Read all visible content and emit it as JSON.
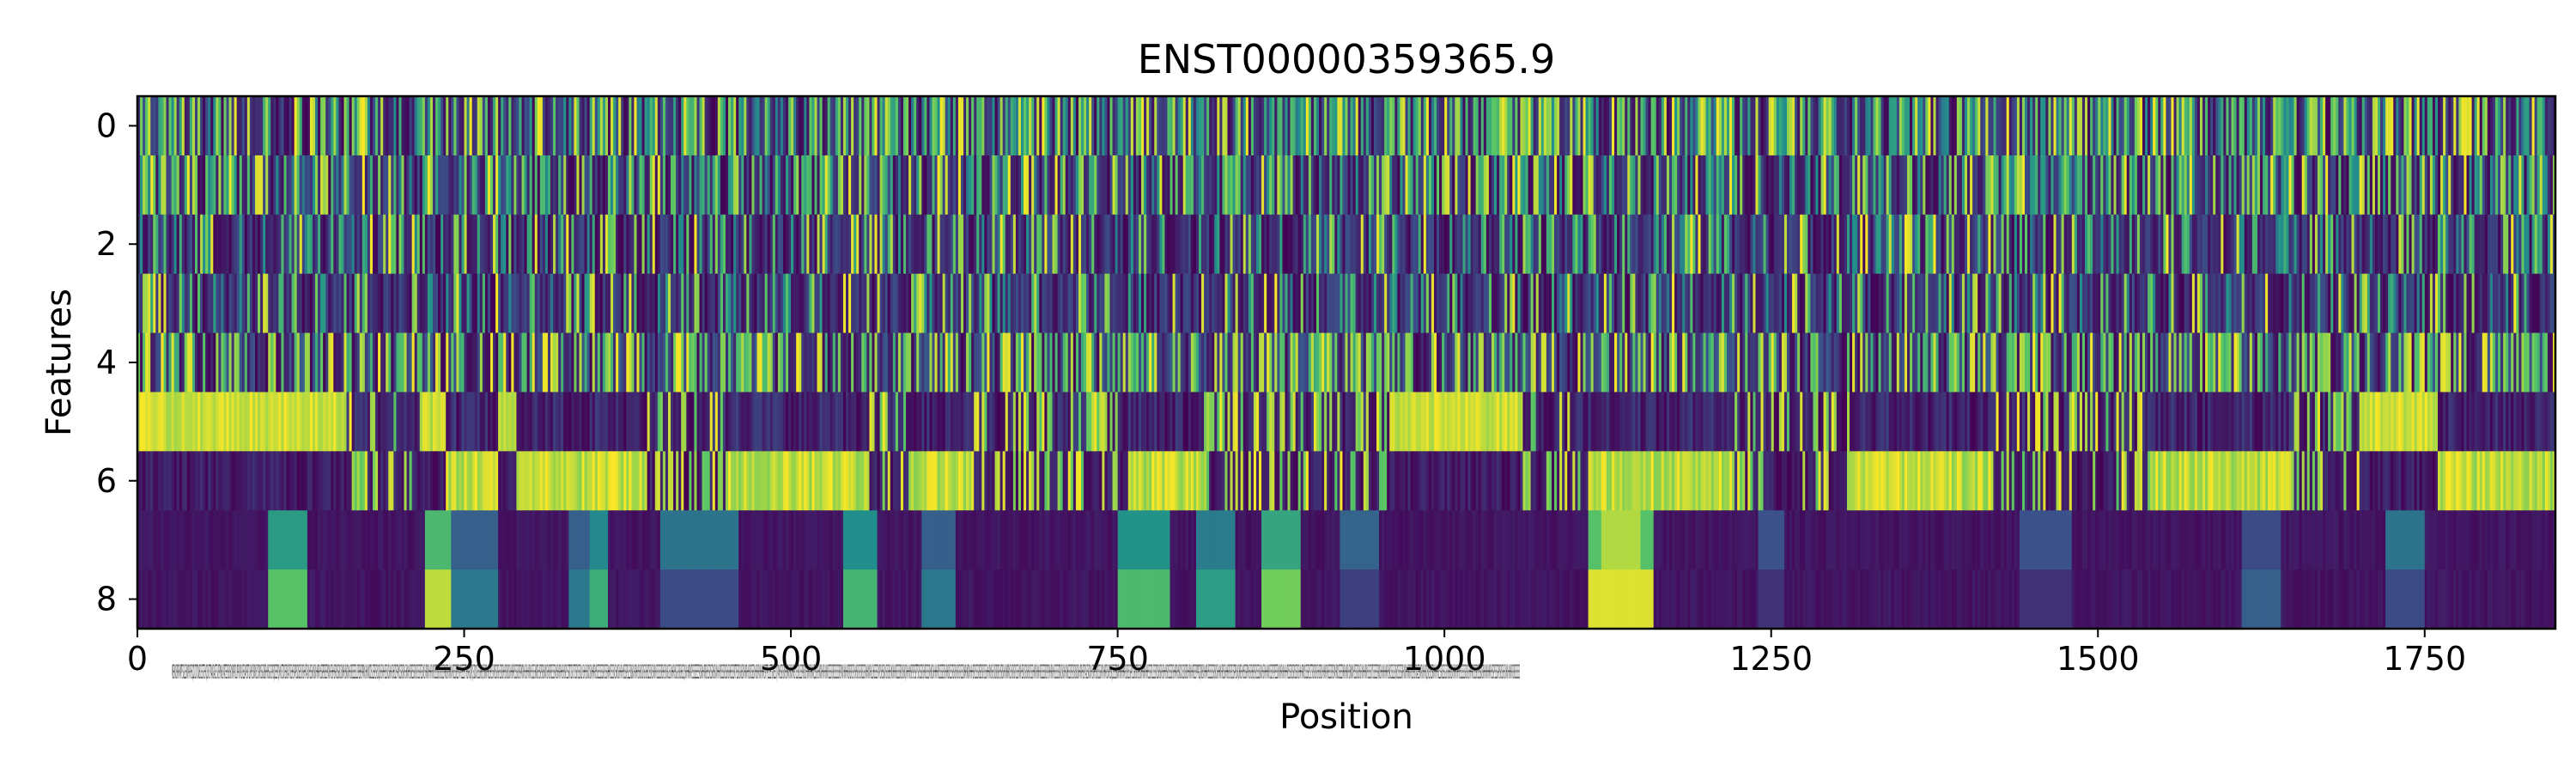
{
  "chart_data": {
    "type": "heatmap",
    "title": "ENST00000359365.9",
    "xlabel": "Position",
    "ylabel": "Features",
    "x_range": [
      0,
      1850
    ],
    "y_range": [
      -0.5,
      8.5
    ],
    "y_inverted": true,
    "colormap": "viridis",
    "colormap_stops": [
      "#440154",
      "#3b528b",
      "#21918c",
      "#5ec962",
      "#fde725"
    ],
    "x_ticks": [
      "0",
      "250",
      "500",
      "750",
      "1000",
      "1250",
      "1500",
      "1750"
    ],
    "x_tick_values": [
      0,
      250,
      500,
      750,
      1000,
      1250,
      1500,
      1750
    ],
    "y_ticks": [
      "0",
      "2",
      "4",
      "6",
      "8"
    ],
    "y_tick_values": [
      0,
      2,
      4,
      6,
      8
    ],
    "feature_rows": 9,
    "sequence_length": 1850,
    "sequence_label": "MERKISRRFMPTSGLERKPRRFSQDCDTDWEGSSTEHQSVSTPAKGAETSVEPNHLPATEERSRSKYRPRDLPPRKPLRESAPSRTLRHYEKRKEYDRRSSGNERHHSGRSPSQSEEPQHVETDRERSATVSSHSRPRSDSEKSRSHHTASKHSSHKSKHHRRHSSPEREEPKRHREHHSRRSSRDSKHRHSKRHHSRSSESSLSPEHSPRRKHHKKDDSLSERSRSQSHSRHHSSSKSHHRSHSDSPRKSSRSRHSHKHHSRESSRSRSSSPEGHKSHRRHHHRHRSSSSSRSRSSSPHRSRHHKHRSSSRESPVPSEEEFTHSRRQPQSIDDRSSSRHSHSHRHHSSHSSHRSSRSHSSRSHHSRSKSHHRHRSSSRSPSPKRHHSHHHRHSSSSHKRSHSPSRSHKRSHRSRSSSSRHSHRRHHSHSPLSSRTGSVSTSSRSSSKLHSHHSHDKSKHHRRHSSESSSSSRSSSRHHKSSSSKSHKSHHRHHSSSPSLESNSKHRRHHSHSKSRSRSHSDSSKSHRHRSSSSSRSHSRSHGSSKHHRHSGRSRSHSSQSHHHRRKPSSSEEEESRSRHHRRSHSSRSSRHSKKHHHRSSSSRSSHSRHSSSSRTPESRGHEKRHRRHHSRSSEKHHSHRHHHHRSPTPSLSETGKEEQTPAHSSRSKHSHRKHKHHRSTSSSRLESPRSKSHHHRHHKKSSSPEHKRHHRHHHRSESRSRSSSSSSRSPKKHHHHRSRSRSPSHHSRSRSRSGSRHHKKRHLSHSSESPVRSHSSKHSRSHSHKHHHRSSSSRSNSHQRHHHHSPSPSSPTSRSSSRSHRSSSSRHKSHHHHHRSSSSERSHRHSKSSSRSRSHSRSRSSSKHRHKRHHHHSRSSSSRSERSRSSSHHHRHSHSKSRSRSHSRSHHKHRRKSHSRSRSSSHKRHSSKSRSHSRSSSHHKRHHHRSSSESRSPSPHHRHHSSSSSRGKSKHHRKHSSSRSRSRSKSHHRRHSPSAESKRHHSRHHSRSSSHPKHHRRSHRSSQSSSERKRHHHHHRRSRSSSPPLGSRSRSHSKHHHRHHHSSSPSLSSSRDSHSRHSHHHSRSSSSRSHHRRHSKDKSSKSRSHHRHHRSSSPPPGQREKHHHRHSSSSSSRSKSHHHKHRSSHHHSRSRSSSPRSHQHRSHHSSSPRHSRSHSRSRSSSSKHHSRHHHHRSSSPSPEESKHKHRHHHHHRSSSRSSRSSSRSHHHRRKSSSSPLSTSRSRSRSHSRSKHHHRRHSSSSRSPKHRDSSEERHRHHRHSHKKKHSSSRSHSHKHHHRHSSSSKTSSSESRRKSHHHHHHRHSKSSSLSRSKSSSSSRHKKHHHRRRSSPSKSAESHKRHHHRQSKSRSSRHHHHHLSSRSESGSRSHSRSKHHHRHHHSSSSSSRSRSHHHRRSSSRSSSSNSRHHHHHHRHSSPSSSSPRSRSSHSKHKHHHRRSRSSSSSS"
  }
}
